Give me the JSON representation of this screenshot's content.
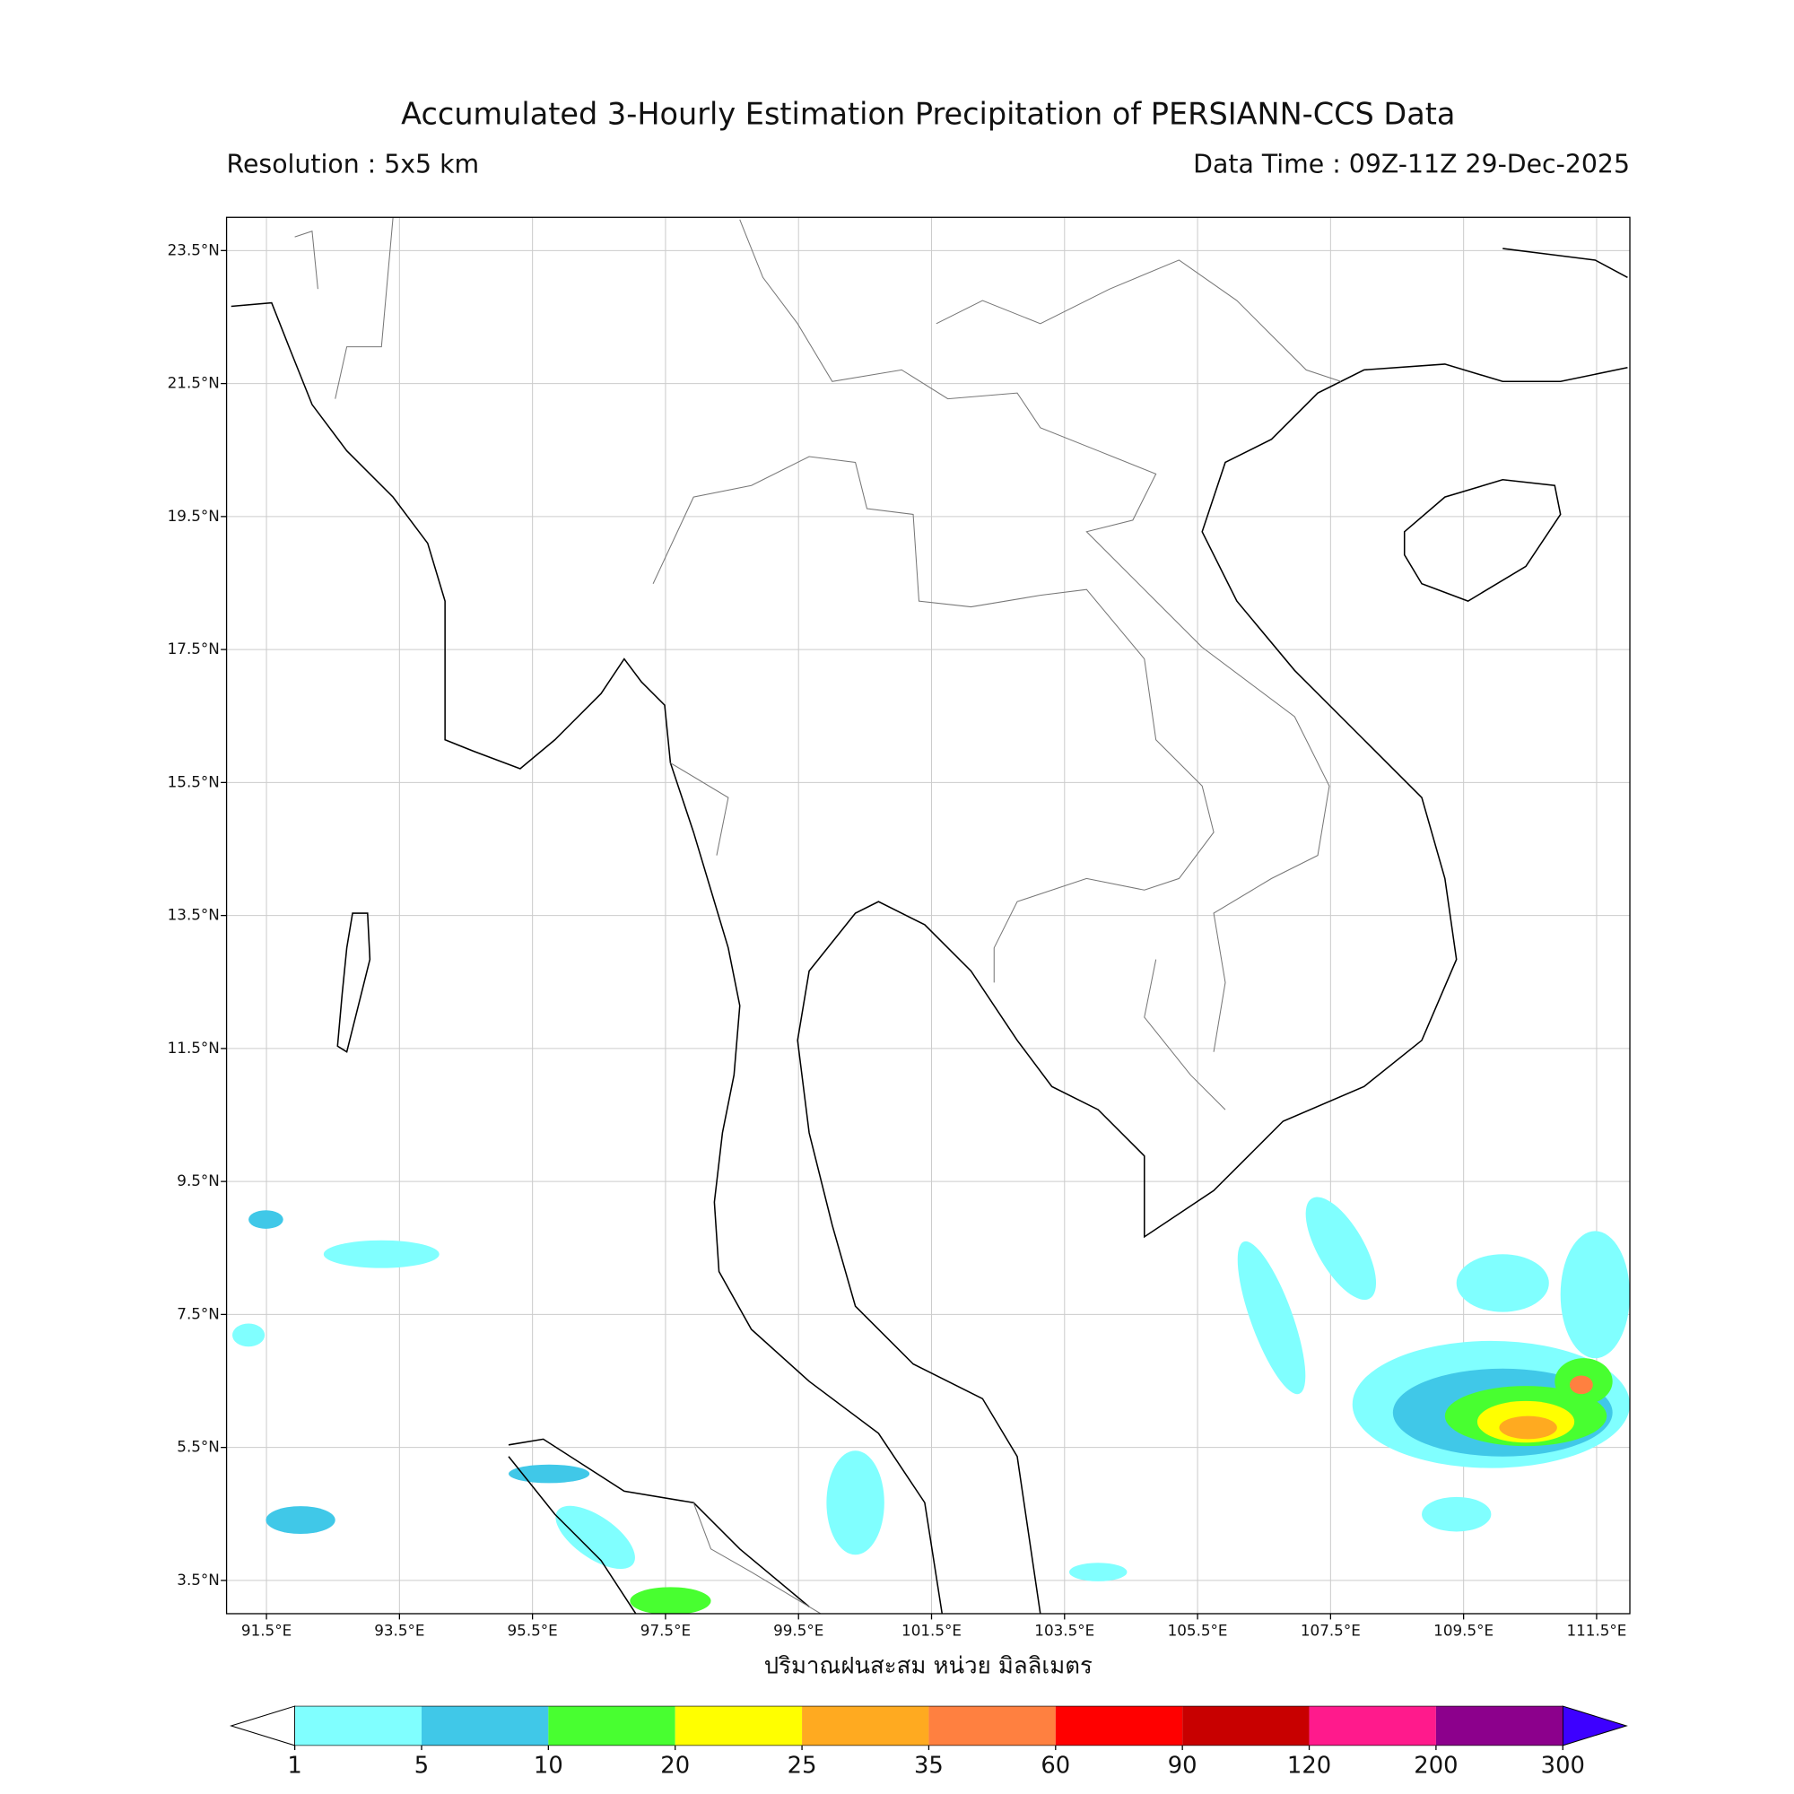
{
  "header": {
    "title": "Accumulated 3-Hourly Estimation Precipitation of PERSIANN-CCS Data",
    "resolution": "Resolution : 5x5 km",
    "data_time": "Data Time : 09Z-11Z 29-Dec-2025"
  },
  "map": {
    "lonlim": [
      90.9,
      112.0
    ],
    "latlim": [
      3.0,
      24.0
    ],
    "grid": true,
    "lonticks": [
      {
        "value": 91.5,
        "label": "91.5°E"
      },
      {
        "value": 93.5,
        "label": "93.5°E"
      },
      {
        "value": 95.5,
        "label": "95.5°E"
      },
      {
        "value": 97.5,
        "label": "97.5°E"
      },
      {
        "value": 99.5,
        "label": "99.5°E"
      },
      {
        "value": 101.5,
        "label": "101.5°E"
      },
      {
        "value": 103.5,
        "label": "103.5°E"
      },
      {
        "value": 105.5,
        "label": "105.5°E"
      },
      {
        "value": 107.5,
        "label": "107.5°E"
      },
      {
        "value": 109.5,
        "label": "109.5°E"
      },
      {
        "value": 111.5,
        "label": "111.5°E"
      }
    ],
    "latticks": [
      {
        "value": 3.5,
        "label": "3.5°N"
      },
      {
        "value": 5.5,
        "label": "5.5°N"
      },
      {
        "value": 7.5,
        "label": "7.5°N"
      },
      {
        "value": 9.5,
        "label": "9.5°N"
      },
      {
        "value": 11.5,
        "label": "11.5°N"
      },
      {
        "value": 13.5,
        "label": "13.5°N"
      },
      {
        "value": 15.5,
        "label": "15.5°N"
      },
      {
        "value": 17.5,
        "label": "17.5°N"
      },
      {
        "value": 19.5,
        "label": "19.5°N"
      },
      {
        "value": 21.5,
        "label": "21.5°N"
      },
      {
        "value": 23.5,
        "label": "23.5°N"
      }
    ],
    "xlabel": "ปริมาณฝนสะสม หน่วย มิลลิเมตร"
  },
  "colorbar": {
    "levels": [
      1,
      5,
      10,
      20,
      25,
      35,
      60,
      90,
      120,
      200,
      300
    ],
    "colors": [
      "#80ffff",
      "#40c8e8",
      "#48ff30",
      "#ffff00",
      "#ffaa20",
      "#ff8040",
      "#ff0000",
      "#c80000",
      "#ff1a8c",
      "#8c008c"
    ],
    "under_color": "#ffffff",
    "over_color": "#3d00ff"
  }
}
